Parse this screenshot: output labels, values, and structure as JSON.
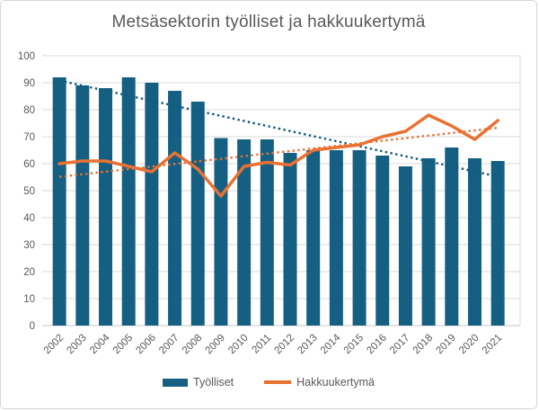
{
  "chart_data": {
    "type": "bar",
    "subtype": "combo-bar-line-with-linear-trendlines",
    "title": "Metsäsektorin työlliset ja hakkuukertymä",
    "categories": [
      "2002",
      "2003",
      "2004",
      "2005",
      "2006",
      "2007",
      "2008",
      "2009",
      "2010",
      "2011",
      "2012",
      "2013",
      "2014",
      "2015",
      "2016",
      "2017",
      "2018",
      "2019",
      "2020",
      "2021"
    ],
    "series": [
      {
        "name": "Työlliset",
        "type": "bar",
        "color": "#156082",
        "trendline_color": "#12597c",
        "values": [
          92,
          89,
          88,
          92,
          90,
          87,
          83,
          69.5,
          69,
          69,
          64,
          65,
          65,
          65,
          63,
          59,
          62,
          66,
          62,
          61
        ]
      },
      {
        "name": "Hakkuukertymä",
        "type": "line",
        "color": "#E97132",
        "trendline_color": "#E97132",
        "values": [
          60,
          61,
          61,
          59,
          57,
          64,
          58,
          48,
          59,
          60.5,
          59.5,
          65,
          66,
          67,
          70,
          72,
          78,
          74,
          69,
          76
        ]
      }
    ],
    "y_axis": {
      "min": 0,
      "max": 100,
      "step": 10,
      "ticks": [
        0,
        10,
        20,
        30,
        40,
        50,
        60,
        70,
        80,
        90,
        100
      ]
    },
    "legend": {
      "position": "bottom",
      "entries": [
        "Työlliset",
        "Hakkuukertymä"
      ]
    },
    "grid": "horizontal",
    "ylim": [
      0,
      100
    ],
    "xlabel": "",
    "ylabel": "",
    "colors": {
      "gridline": "#d9d9d9",
      "axis_line": "#c6c6c6",
      "plot_right_border": "#d9d9d9",
      "text": "#595959",
      "background": "#ffffff",
      "frame_border": "#d6d6d6"
    }
  }
}
